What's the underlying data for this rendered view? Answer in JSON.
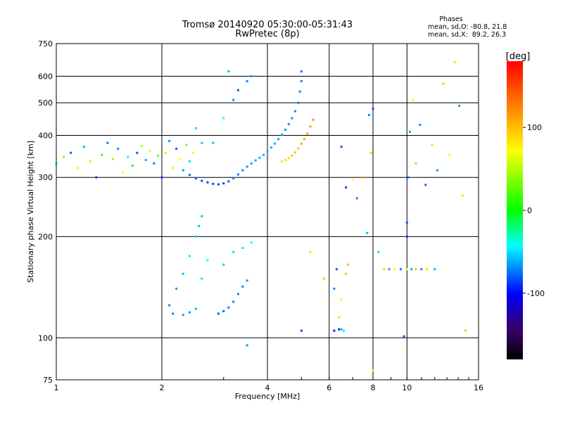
{
  "header": {
    "title": "Tromsø 20140920 05:30:00-05:31:43",
    "subtitle": "RwPretec (8p)"
  },
  "phases": {
    "title": "Phases",
    "stat_o": "mean, sd,O: -80.8, 21.8",
    "stat_x": "mean, sd,X:  89.2, 26.3"
  },
  "colorbar": {
    "unit": "[deg]",
    "ticks": [
      "100",
      "0",
      "-100"
    ],
    "tick_values": [
      100,
      0,
      -100
    ],
    "range": [
      -180,
      180
    ]
  },
  "chart_data": {
    "type": "scatter",
    "xlabel": "Frequency [MHz]",
    "ylabel": "Stationary phase Virtual Height [km]",
    "xscale": "log",
    "yscale": "log",
    "xlim": [
      1,
      16
    ],
    "ylim": [
      75,
      750
    ],
    "x_ticks": [
      1,
      2,
      4,
      6,
      8,
      10,
      16
    ],
    "x_tick_labels": [
      "1",
      "2",
      "4",
      "6",
      "8",
      "10",
      "16"
    ],
    "y_ticks": [
      75,
      100,
      200,
      300,
      400,
      500,
      600,
      750
    ],
    "y_tick_labels": [
      "75",
      "100",
      "200",
      "300",
      "400",
      "500",
      "600",
      "750"
    ],
    "grid": true,
    "color_encoding": "phase [deg]",
    "series": [
      {
        "points": [
          [
            1.0,
            330,
            -40
          ],
          [
            1.05,
            345,
            60
          ],
          [
            1.1,
            355,
            -110
          ],
          [
            1.15,
            320,
            90
          ],
          [
            1.2,
            370,
            -80
          ],
          [
            1.25,
            335,
            110
          ],
          [
            1.3,
            300,
            -120
          ],
          [
            1.35,
            350,
            40
          ],
          [
            1.4,
            380,
            -100
          ],
          [
            1.45,
            340,
            70
          ],
          [
            1.5,
            365,
            -90
          ],
          [
            1.55,
            310,
            100
          ],
          [
            1.6,
            345,
            -60
          ],
          [
            1.65,
            325,
            20
          ],
          [
            1.7,
            355,
            -115
          ],
          [
            1.75,
            372,
            80
          ],
          [
            1.8,
            338,
            -85
          ],
          [
            1.85,
            360,
            95
          ],
          [
            1.9,
            330,
            -100
          ],
          [
            1.95,
            348,
            50
          ],
          [
            2.0,
            300,
            -120
          ],
          [
            2.05,
            355,
            110
          ],
          [
            2.1,
            385,
            -95
          ],
          [
            2.15,
            320,
            80
          ],
          [
            2.2,
            365,
            -110
          ],
          [
            2.25,
            340,
            100
          ],
          [
            2.3,
            315,
            -90
          ],
          [
            2.35,
            375,
            60
          ],
          [
            2.4,
            335,
            -70
          ],
          [
            2.45,
            355,
            90
          ],
          [
            2.4,
            305,
            -105
          ],
          [
            2.5,
            298,
            -110
          ],
          [
            2.6,
            293,
            -115
          ],
          [
            2.7,
            290,
            -118
          ],
          [
            2.8,
            287,
            -120
          ],
          [
            2.9,
            286,
            -122
          ],
          [
            3.0,
            288,
            -118
          ],
          [
            3.1,
            292,
            -112
          ],
          [
            3.2,
            298,
            -105
          ],
          [
            3.3,
            306,
            -100
          ],
          [
            3.4,
            315,
            -96
          ],
          [
            3.5,
            323,
            -93
          ],
          [
            3.6,
            330,
            -90
          ],
          [
            3.7,
            337,
            -88
          ],
          [
            3.8,
            343,
            -86
          ],
          [
            3.9,
            350,
            -84
          ],
          [
            4.0,
            358,
            -82
          ],
          [
            4.1,
            368,
            -84
          ],
          [
            4.2,
            378,
            -86
          ],
          [
            4.3,
            390,
            -88
          ],
          [
            4.4,
            402,
            -90
          ],
          [
            4.5,
            416,
            -92
          ],
          [
            4.6,
            432,
            -94
          ],
          [
            4.7,
            450,
            -95
          ],
          [
            4.8,
            472,
            -96
          ],
          [
            4.9,
            500,
            -98
          ],
          [
            4.95,
            540,
            -100
          ],
          [
            5.0,
            580,
            -102
          ],
          [
            5.0,
            620,
            -105
          ],
          [
            4.4,
            335,
            110
          ],
          [
            4.5,
            338,
            112
          ],
          [
            4.6,
            342,
            115
          ],
          [
            4.7,
            348,
            118
          ],
          [
            4.8,
            356,
            120
          ],
          [
            4.9,
            366,
            122
          ],
          [
            5.0,
            378,
            124
          ],
          [
            5.1,
            390,
            126
          ],
          [
            5.2,
            405,
            128
          ],
          [
            5.3,
            425,
            130
          ],
          [
            5.4,
            445,
            132
          ],
          [
            2.5,
            200,
            -70
          ],
          [
            2.55,
            215,
            -75
          ],
          [
            2.6,
            230,
            -78
          ],
          [
            2.4,
            175,
            -65
          ],
          [
            2.3,
            155,
            -80
          ],
          [
            2.2,
            140,
            -90
          ],
          [
            2.1,
            125,
            -95
          ],
          [
            2.15,
            118,
            -100
          ],
          [
            2.3,
            117,
            -88
          ],
          [
            2.4,
            119,
            -92
          ],
          [
            2.5,
            122,
            -85
          ],
          [
            2.6,
            150,
            -70
          ],
          [
            2.7,
            170,
            -60
          ],
          [
            2.9,
            118,
            -110
          ],
          [
            3.0,
            120,
            -108
          ],
          [
            3.1,
            123,
            -104
          ],
          [
            3.2,
            128,
            -100
          ],
          [
            3.3,
            135,
            -98
          ],
          [
            3.4,
            142,
            -96
          ],
          [
            3.5,
            148,
            -94
          ],
          [
            3.0,
            165,
            -75
          ],
          [
            3.2,
            180,
            -70
          ],
          [
            3.4,
            185,
            -65
          ],
          [
            3.6,
            192,
            -60
          ],
          [
            2.8,
            380,
            -80
          ],
          [
            3.0,
            450,
            -60
          ],
          [
            3.2,
            510,
            -95
          ],
          [
            3.3,
            545,
            -110
          ],
          [
            3.5,
            580,
            -100
          ],
          [
            3.6,
            600,
            -90
          ],
          [
            3.1,
            620,
            -85
          ],
          [
            2.5,
            420,
            -70
          ],
          [
            2.6,
            380,
            -75
          ],
          [
            6.2,
            105,
            -130
          ],
          [
            6.4,
            106,
            -125
          ],
          [
            6.5,
            106,
            -80
          ],
          [
            6.6,
            105,
            -70
          ],
          [
            6.4,
            115,
            110
          ],
          [
            6.5,
            130,
            90
          ],
          [
            6.7,
            155,
            60
          ],
          [
            6.3,
            160,
            -110
          ],
          [
            6.8,
            165,
            120
          ],
          [
            6.5,
            370,
            -110
          ],
          [
            6.7,
            280,
            -120
          ],
          [
            7.0,
            295,
            100
          ],
          [
            7.2,
            260,
            -100
          ],
          [
            7.5,
            300,
            130
          ],
          [
            7.8,
            460,
            -95
          ],
          [
            7.9,
            355,
            70
          ],
          [
            8.0,
            480,
            -115
          ],
          [
            7.7,
            205,
            -80
          ],
          [
            8.3,
            180,
            -70
          ],
          [
            8.6,
            160,
            110
          ],
          [
            8.9,
            160,
            -90
          ],
          [
            9.2,
            160,
            100
          ],
          [
            9.6,
            160,
            -100
          ],
          [
            10.0,
            160,
            95
          ],
          [
            10.3,
            160,
            -85
          ],
          [
            10.6,
            160,
            120
          ],
          [
            11.0,
            160,
            -95
          ],
          [
            11.4,
            160,
            105
          ],
          [
            12.0,
            160,
            -80
          ],
          [
            10.0,
            220,
            -110
          ],
          [
            10.0,
            200,
            -120
          ],
          [
            10.1,
            300,
            -100
          ],
          [
            10.2,
            410,
            -90
          ],
          [
            10.4,
            510,
            100
          ],
          [
            10.6,
            330,
            120
          ],
          [
            10.9,
            430,
            -95
          ],
          [
            11.3,
            285,
            -105
          ],
          [
            11.8,
            375,
            110
          ],
          [
            12.2,
            315,
            -90
          ],
          [
            12.7,
            570,
            120
          ],
          [
            13.2,
            350,
            100
          ],
          [
            13.7,
            660,
            110
          ],
          [
            14.1,
            490,
            -90
          ],
          [
            14.4,
            265,
            80
          ],
          [
            14.7,
            105,
            60
          ],
          [
            9.8,
            101,
            -110
          ],
          [
            8.0,
            80,
            100
          ],
          [
            5.3,
            180,
            110
          ],
          [
            5.8,
            150,
            120
          ],
          [
            6.2,
            140,
            -100
          ],
          [
            5.0,
            105,
            -120
          ],
          [
            3.5,
            95,
            -90
          ]
        ]
      }
    ]
  }
}
